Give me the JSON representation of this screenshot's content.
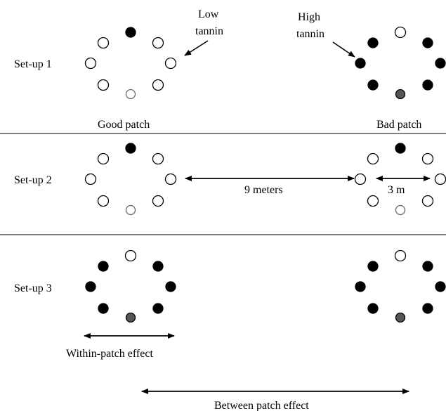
{
  "colors": {
    "low_tannin_fill": "#ffffff",
    "high_tannin_fill": "#000000",
    "central_fill": "#555555",
    "stroke": "#000000"
  },
  "annotations": {
    "low_tannin": [
      "Low",
      "tannin"
    ],
    "high_tannin": [
      "High",
      "tannin"
    ]
  },
  "captions": {
    "good_patch": "Good patch",
    "bad_patch": "Bad patch"
  },
  "distances": {
    "between_patches": "9 meters",
    "patch_diameter": "3 m"
  },
  "effects": {
    "within_patch": "Within-patch effect",
    "between_patch": "Between patch effect"
  },
  "setups": [
    {
      "label": "Set-up 1",
      "left_patch": {
        "ring": [
          "high",
          "low",
          "low",
          "low",
          "low",
          "low",
          "low"
        ],
        "center": "low"
      },
      "right_patch": {
        "ring": [
          "low",
          "high",
          "high",
          "high",
          "high",
          "high",
          "high"
        ],
        "center": "high"
      }
    },
    {
      "label": "Set-up 2",
      "left_patch": {
        "ring": [
          "high",
          "low",
          "low",
          "low",
          "low",
          "low",
          "low"
        ],
        "center": "low"
      },
      "right_patch": {
        "ring": [
          "high",
          "low",
          "low",
          "low",
          "low",
          "low",
          "low"
        ],
        "center": "low"
      }
    },
    {
      "label": "Set-up 3",
      "left_patch": {
        "ring": [
          "low",
          "high",
          "high",
          "high",
          "high",
          "high",
          "high"
        ],
        "center": "high"
      },
      "right_patch": {
        "ring": [
          "low",
          "high",
          "high",
          "high",
          "high",
          "high",
          "high"
        ],
        "center": "high"
      }
    }
  ]
}
